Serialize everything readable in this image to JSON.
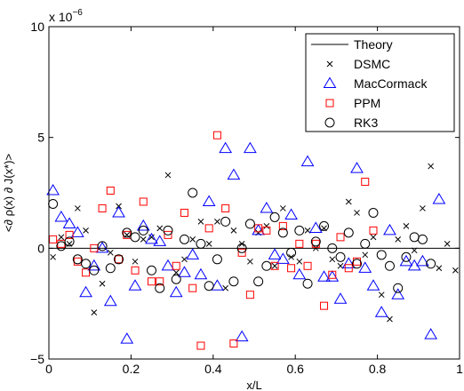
{
  "chart_data": {
    "type": "scatter",
    "xlabel": "x/L",
    "ylabel": "<∂ ρ(x) ∂ J(x*)>",
    "exponent_label": "x 10",
    "exponent_power": "−6",
    "xlim": [
      0,
      1
    ],
    "ylim": [
      -5,
      10
    ],
    "x_ticks": [
      "0",
      "0.2",
      "0.4",
      "0.6",
      "0.8",
      "1"
    ],
    "y_ticks": [
      "−5",
      "0",
      "5",
      "10"
    ],
    "y_tick_values": [
      -5,
      0,
      5,
      10
    ],
    "x_tick_values": [
      0,
      0.2,
      0.4,
      0.6,
      0.8,
      1
    ],
    "legend_position": "top-right",
    "grid": false,
    "theory": {
      "name": "Theory",
      "x": [
        0,
        1
      ],
      "y": [
        0,
        0
      ],
      "color": "#000000"
    },
    "series": [
      {
        "name": "DSMC",
        "marker": "x",
        "color": "#000000",
        "points": [
          [
            0.01,
            -0.4
          ],
          [
            0.03,
            0.5
          ],
          [
            0.05,
            0.2
          ],
          [
            0.07,
            1.8
          ],
          [
            0.09,
            0.8
          ],
          [
            0.11,
            -2.9
          ],
          [
            0.13,
            -1.6
          ],
          [
            0.15,
            -0.2
          ],
          [
            0.17,
            1.9
          ],
          [
            0.19,
            0.6
          ],
          [
            0.21,
            -0.6
          ],
          [
            0.23,
            0.4
          ],
          [
            0.25,
            0.5
          ],
          [
            0.27,
            0.9
          ],
          [
            0.29,
            3.3
          ],
          [
            0.31,
            -1.1
          ],
          [
            0.33,
            -0.5
          ],
          [
            0.35,
            0.4
          ],
          [
            0.37,
            1.2
          ],
          [
            0.39,
            0.2
          ],
          [
            0.41,
            1.2
          ],
          [
            0.43,
            -1.8
          ],
          [
            0.45,
            0.8
          ],
          [
            0.47,
            0.2
          ],
          [
            0.49,
            -0.6
          ],
          [
            0.51,
            0.7
          ],
          [
            0.53,
            1.0
          ],
          [
            0.55,
            -0.8
          ],
          [
            0.57,
            1.8
          ],
          [
            0.59,
            -0.4
          ],
          [
            0.61,
            -0.6
          ],
          [
            0.63,
            0.8
          ],
          [
            0.65,
            0.0
          ],
          [
            0.67,
            0.9
          ],
          [
            0.69,
            -0.5
          ],
          [
            0.71,
            -0.8
          ],
          [
            0.73,
            2.1
          ],
          [
            0.75,
            1.6
          ],
          [
            0.77,
            -0.3
          ],
          [
            0.79,
            0.5
          ],
          [
            0.81,
            -2.1
          ],
          [
            0.83,
            -3.2
          ],
          [
            0.85,
            0.4
          ],
          [
            0.87,
            1.0
          ],
          [
            0.89,
            -0.1
          ],
          [
            0.91,
            1.8
          ],
          [
            0.93,
            3.7
          ],
          [
            0.95,
            -0.9
          ],
          [
            0.97,
            0.2
          ],
          [
            0.99,
            -1.0
          ]
        ]
      },
      {
        "name": "MacCormack",
        "marker": "triangle",
        "color": "#0000ff",
        "points": [
          [
            0.01,
            2.6
          ],
          [
            0.03,
            1.4
          ],
          [
            0.05,
            1.1
          ],
          [
            0.07,
            0.7
          ],
          [
            0.09,
            -2.0
          ],
          [
            0.11,
            -0.8
          ],
          [
            0.13,
            0.0
          ],
          [
            0.15,
            -2.4
          ],
          [
            0.17,
            1.6
          ],
          [
            0.19,
            -4.1
          ],
          [
            0.21,
            -1.7
          ],
          [
            0.23,
            1.0
          ],
          [
            0.25,
            0.4
          ],
          [
            0.27,
            0.3
          ],
          [
            0.29,
            -0.8
          ],
          [
            0.31,
            -2.0
          ],
          [
            0.33,
            -1.1
          ],
          [
            0.35,
            -0.3
          ],
          [
            0.37,
            -1.2
          ],
          [
            0.39,
            2.1
          ],
          [
            0.41,
            -1.7
          ],
          [
            0.43,
            4.5
          ],
          [
            0.45,
            3.3
          ],
          [
            0.47,
            -4.0
          ],
          [
            0.49,
            4.5
          ],
          [
            0.51,
            0.8
          ],
          [
            0.53,
            1.8
          ],
          [
            0.55,
            -0.3
          ],
          [
            0.57,
            -0.5
          ],
          [
            0.59,
            1.5
          ],
          [
            0.61,
            -1.2
          ],
          [
            0.63,
            3.9
          ],
          [
            0.65,
            0.9
          ],
          [
            0.67,
            -1.3
          ],
          [
            0.69,
            -1.3
          ],
          [
            0.71,
            -2.3
          ],
          [
            0.73,
            -0.7
          ],
          [
            0.75,
            3.6
          ],
          [
            0.77,
            -0.9
          ],
          [
            0.79,
            -1.7
          ],
          [
            0.81,
            -2.9
          ],
          [
            0.83,
            0.8
          ],
          [
            0.85,
            -2.1
          ],
          [
            0.87,
            -0.6
          ],
          [
            0.89,
            -0.8
          ],
          [
            0.91,
            -0.6
          ],
          [
            0.93,
            -3.9
          ],
          [
            0.95,
            2.2
          ]
        ]
      },
      {
        "name": "PPM",
        "marker": "square",
        "color": "#ff0000",
        "points": [
          [
            0.01,
            0.4
          ],
          [
            0.03,
            0.2
          ],
          [
            0.05,
            0.6
          ],
          [
            0.07,
            -0.6
          ],
          [
            0.09,
            -1.1
          ],
          [
            0.11,
            0.0
          ],
          [
            0.13,
            1.8
          ],
          [
            0.15,
            2.6
          ],
          [
            0.17,
            -0.5
          ],
          [
            0.19,
            0.6
          ],
          [
            0.21,
            -1.0
          ],
          [
            0.23,
            2.1
          ],
          [
            0.25,
            -1.5
          ],
          [
            0.27,
            -1.5
          ],
          [
            0.29,
            0.6
          ],
          [
            0.31,
            -0.8
          ],
          [
            0.33,
            1.6
          ],
          [
            0.35,
            -1.8
          ],
          [
            0.37,
            -4.4
          ],
          [
            0.39,
            0.9
          ],
          [
            0.41,
            5.1
          ],
          [
            0.43,
            1.8
          ],
          [
            0.45,
            -4.3
          ],
          [
            0.47,
            -0.2
          ],
          [
            0.49,
            -2.1
          ],
          [
            0.51,
            0.9
          ],
          [
            0.53,
            0.8
          ],
          [
            0.55,
            -0.8
          ],
          [
            0.57,
            1.0
          ],
          [
            0.59,
            -0.9
          ],
          [
            0.61,
            0.2
          ],
          [
            0.63,
            -0.8
          ],
          [
            0.65,
            0.2
          ],
          [
            0.67,
            -2.6
          ],
          [
            0.69,
            -1.2
          ],
          [
            0.71,
            0.5
          ],
          [
            0.73,
            -0.9
          ],
          [
            0.75,
            -0.6
          ],
          [
            0.77,
            3.0
          ],
          [
            0.79,
            0.8
          ]
        ]
      },
      {
        "name": "RK3",
        "marker": "circle",
        "color": "#000000",
        "points": [
          [
            0.01,
            2.0
          ],
          [
            0.03,
            0.1
          ],
          [
            0.05,
            0.3
          ],
          [
            0.07,
            -0.5
          ],
          [
            0.09,
            -0.7
          ],
          [
            0.11,
            -1.0
          ],
          [
            0.13,
            0.1
          ],
          [
            0.15,
            -0.9
          ],
          [
            0.17,
            -0.5
          ],
          [
            0.19,
            0.7
          ],
          [
            0.21,
            0.5
          ],
          [
            0.23,
            0.8
          ],
          [
            0.25,
            -1.0
          ],
          [
            0.27,
            -1.8
          ],
          [
            0.29,
            0.8
          ],
          [
            0.31,
            -1.4
          ],
          [
            0.33,
            0.4
          ],
          [
            0.35,
            2.5
          ],
          [
            0.37,
            0.2
          ],
          [
            0.39,
            -1.7
          ],
          [
            0.41,
            -0.5
          ],
          [
            0.43,
            1.2
          ],
          [
            0.45,
            -1.5
          ],
          [
            0.47,
            0.0
          ],
          [
            0.49,
            1.1
          ],
          [
            0.51,
            -1.5
          ],
          [
            0.53,
            -0.8
          ],
          [
            0.55,
            1.4
          ],
          [
            0.57,
            0.7
          ],
          [
            0.59,
            -0.2
          ],
          [
            0.61,
            0.8
          ],
          [
            0.63,
            -1.6
          ],
          [
            0.65,
            0.3
          ],
          [
            0.67,
            1.0
          ],
          [
            0.69,
            0.0
          ],
          [
            0.71,
            -0.4
          ],
          [
            0.73,
            0.7
          ],
          [
            0.75,
            -0.7
          ],
          [
            0.77,
            0.2
          ],
          [
            0.79,
            1.6
          ],
          [
            0.81,
            -0.3
          ],
          [
            0.83,
            -0.8
          ],
          [
            0.85,
            -1.8
          ],
          [
            0.87,
            -0.4
          ],
          [
            0.89,
            0.5
          ],
          [
            0.91,
            0.4
          ],
          [
            0.93,
            -0.7
          ]
        ]
      }
    ]
  }
}
